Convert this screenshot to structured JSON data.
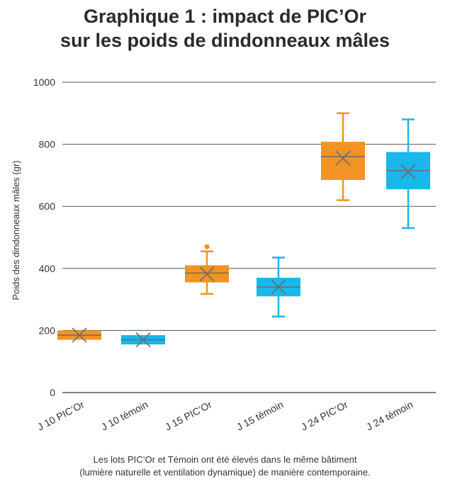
{
  "title_lines": [
    "Graphique 1 : impact de PIC’Or",
    "sur les poids de dindonneaux mâles"
  ],
  "caption_lines": [
    "Les lots PIC’Or et Témoin ont été élevés dans le même bâtiment",
    "(lumière naturelle et ventilation dynamique) de manière contemporaine."
  ],
  "chart_data": {
    "type": "box",
    "title": "Graphique 1 : impact de PIC’Or sur les poids de dindonneaux mâles",
    "xlabel": "",
    "ylabel": "Poids des dindonneaux mâles (gr)",
    "ylim": [
      0,
      1000
    ],
    "yticks": [
      0,
      200,
      400,
      600,
      800,
      1000
    ],
    "grid": true,
    "colors": {
      "pic_or": "#f39323",
      "temoin": "#1ab7ea"
    },
    "categories": [
      "J 10 PIC’Or",
      "J 10 témoin",
      "J 15 PIC’Or",
      "J 15 témoin",
      "J 24 PIC’Or",
      "J 24 témoin"
    ],
    "boxes": [
      {
        "category": "J 10 PIC’Or",
        "group": "pic_or",
        "min": 170,
        "q1": 170,
        "median": 185,
        "q3": 200,
        "max": 200,
        "mean": 185,
        "outliers": []
      },
      {
        "category": "J 10 témoin",
        "group": "temoin",
        "min": 155,
        "q1": 155,
        "median": 170,
        "q3": 185,
        "max": 185,
        "mean": 170,
        "outliers": []
      },
      {
        "category": "J 15 PIC’Or",
        "group": "pic_or",
        "min": 318,
        "q1": 355,
        "median": 385,
        "q3": 410,
        "max": 455,
        "mean": 382,
        "outliers": [
          470
        ]
      },
      {
        "category": "J 15 témoin",
        "group": "temoin",
        "min": 245,
        "q1": 310,
        "median": 340,
        "q3": 370,
        "max": 435,
        "mean": 340,
        "outliers": []
      },
      {
        "category": "J 24 PIC’Or",
        "group": "pic_or",
        "min": 620,
        "q1": 685,
        "median": 760,
        "q3": 808,
        "max": 900,
        "mean": 755,
        "outliers": []
      },
      {
        "category": "J 24 témoin",
        "group": "temoin",
        "min": 530,
        "q1": 655,
        "median": 715,
        "q3": 775,
        "max": 880,
        "mean": 712,
        "outliers": []
      }
    ]
  }
}
